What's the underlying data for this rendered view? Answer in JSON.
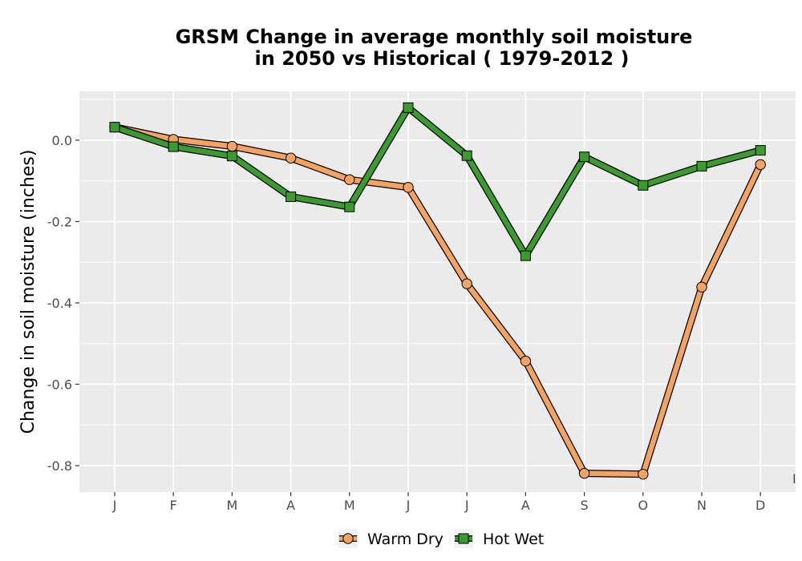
{
  "chart_data": {
    "type": "line",
    "title_line1": "GRSM  Change in average monthly soil moisture",
    "title_line2": "in 2050 vs Historical ( 1979-2012 )",
    "xlabel": "",
    "ylabel": "Change in soil moisture (inches)",
    "categories": [
      "J",
      "F",
      "M",
      "A",
      "M",
      "J",
      "J",
      "A",
      "S",
      "O",
      "N",
      "D"
    ],
    "ylim": [
      -0.865,
      0.12
    ],
    "yticks": [
      0.0,
      -0.2,
      -0.4,
      -0.6,
      -0.8
    ],
    "ytick_labels": [
      "0.0",
      "-0.2",
      "-0.4",
      "-0.6",
      "-0.8"
    ],
    "grid": true,
    "legend_position": "bottom",
    "stray_label": "I",
    "series": [
      {
        "name": "Warm Dry",
        "color": "#F4A460",
        "marker": "circle",
        "values": [
          0.032,
          0.002,
          -0.015,
          -0.044,
          -0.097,
          -0.116,
          -0.353,
          -0.543,
          -0.819,
          -0.821,
          -0.361,
          -0.06
        ]
      },
      {
        "name": "Hot Wet",
        "color": "#3A9B2E",
        "marker": "square",
        "values": [
          0.032,
          -0.016,
          -0.039,
          -0.139,
          -0.164,
          0.08,
          -0.038,
          -0.284,
          -0.041,
          -0.111,
          -0.064,
          -0.025
        ]
      }
    ]
  }
}
